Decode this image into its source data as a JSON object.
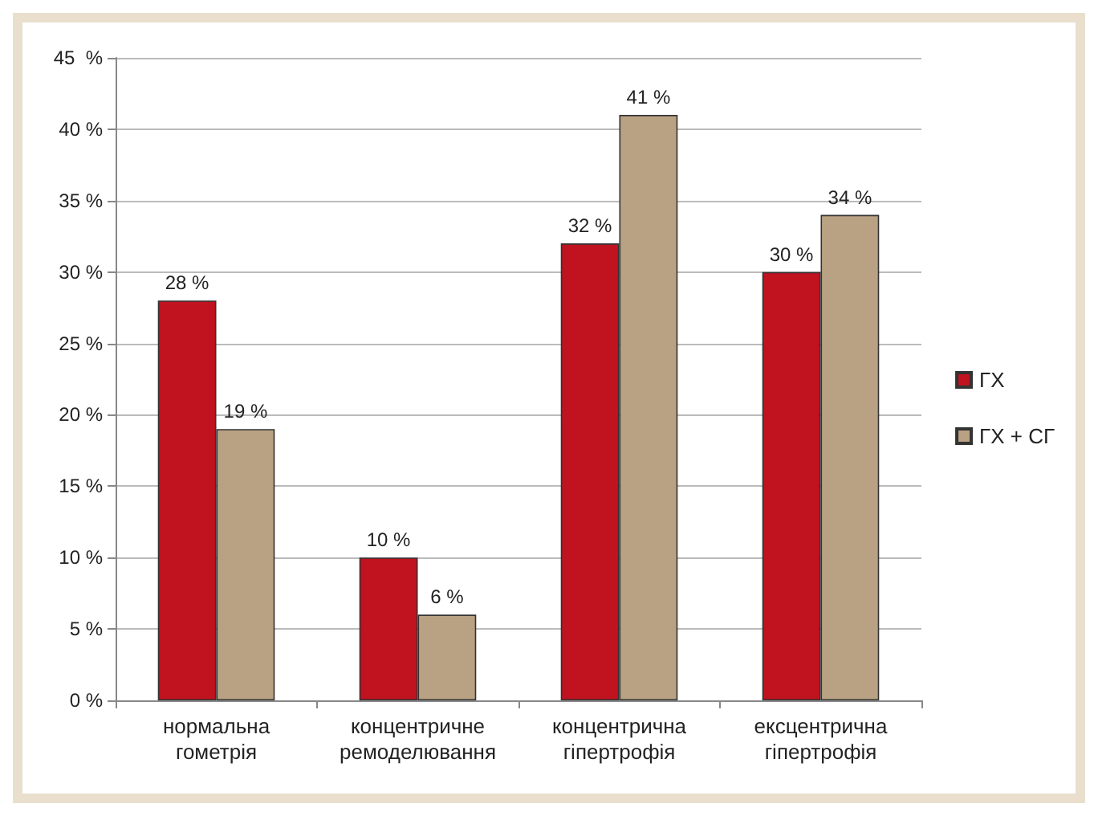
{
  "chart_data": {
    "type": "bar",
    "categories": [
      "нормальна\nгометрія",
      "концентричне\nремоделювання",
      "концентрична\nгіпертрофія",
      "ексцентрична\nгіпертрофія"
    ],
    "series": [
      {
        "name": "ГХ",
        "color": "#c0121f",
        "values": [
          28,
          10,
          32,
          30
        ],
        "value_labels": [
          "28 %",
          "10 %",
          "32 %",
          "30 %"
        ]
      },
      {
        "name": "ГХ + СГ",
        "color": "#b9a283",
        "values": [
          19,
          6,
          41,
          34
        ],
        "value_labels": [
          "19 %",
          "6 %",
          "41 %",
          "34 %"
        ]
      }
    ],
    "ylim": [
      0,
      45
    ],
    "yticks": [
      {
        "value": 0,
        "label": "0 %"
      },
      {
        "value": 5,
        "label": "5 %"
      },
      {
        "value": 10,
        "label": "10 %"
      },
      {
        "value": 15,
        "label": "15 %"
      },
      {
        "value": 20,
        "label": "20 %"
      },
      {
        "value": 25,
        "label": "25 %"
      },
      {
        "value": 30,
        "label": "30 %"
      },
      {
        "value": 35,
        "label": "35 %"
      },
      {
        "value": 40,
        "label": "40 %"
      },
      {
        "value": 45,
        "label": "45  %"
      }
    ],
    "grid": "y",
    "legend": "right"
  }
}
